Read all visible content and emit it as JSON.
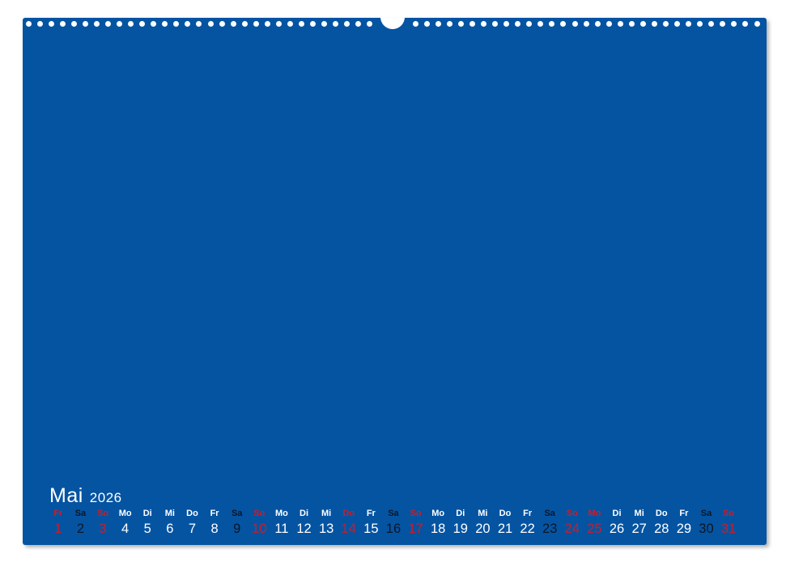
{
  "colors": {
    "page-blue": "#0554a2",
    "text-white": "#ffffff",
    "text-red": "#c2202f",
    "text-dark": "#0a1728",
    "backdrop": "#ffffff"
  },
  "binding": {
    "hole_count": 62
  },
  "calendar": {
    "month": "Mai",
    "year": "2026",
    "days": [
      {
        "date": "1",
        "weekday": "Fr",
        "tone": "red"
      },
      {
        "date": "2",
        "weekday": "Sa",
        "tone": "black"
      },
      {
        "date": "3",
        "weekday": "So",
        "tone": "red"
      },
      {
        "date": "4",
        "weekday": "Mo",
        "tone": "white"
      },
      {
        "date": "5",
        "weekday": "Di",
        "tone": "white"
      },
      {
        "date": "6",
        "weekday": "Mi",
        "tone": "white"
      },
      {
        "date": "7",
        "weekday": "Do",
        "tone": "white"
      },
      {
        "date": "8",
        "weekday": "Fr",
        "tone": "white"
      },
      {
        "date": "9",
        "weekday": "Sa",
        "tone": "black"
      },
      {
        "date": "10",
        "weekday": "So",
        "tone": "red"
      },
      {
        "date": "11",
        "weekday": "Mo",
        "tone": "white"
      },
      {
        "date": "12",
        "weekday": "Di",
        "tone": "white"
      },
      {
        "date": "13",
        "weekday": "Mi",
        "tone": "white"
      },
      {
        "date": "14",
        "weekday": "Do",
        "tone": "red"
      },
      {
        "date": "15",
        "weekday": "Fr",
        "tone": "white"
      },
      {
        "date": "16",
        "weekday": "Sa",
        "tone": "black"
      },
      {
        "date": "17",
        "weekday": "So",
        "tone": "red"
      },
      {
        "date": "18",
        "weekday": "Mo",
        "tone": "white"
      },
      {
        "date": "19",
        "weekday": "Di",
        "tone": "white"
      },
      {
        "date": "20",
        "weekday": "Mi",
        "tone": "white"
      },
      {
        "date": "21",
        "weekday": "Do",
        "tone": "white"
      },
      {
        "date": "22",
        "weekday": "Fr",
        "tone": "white"
      },
      {
        "date": "23",
        "weekday": "Sa",
        "tone": "black"
      },
      {
        "date": "24",
        "weekday": "So",
        "tone": "red"
      },
      {
        "date": "25",
        "weekday": "Mo",
        "tone": "red"
      },
      {
        "date": "26",
        "weekday": "Di",
        "tone": "white"
      },
      {
        "date": "27",
        "weekday": "Mi",
        "tone": "white"
      },
      {
        "date": "28",
        "weekday": "Do",
        "tone": "white"
      },
      {
        "date": "29",
        "weekday": "Fr",
        "tone": "white"
      },
      {
        "date": "30",
        "weekday": "Sa",
        "tone": "black"
      },
      {
        "date": "31",
        "weekday": "So",
        "tone": "red"
      }
    ]
  }
}
